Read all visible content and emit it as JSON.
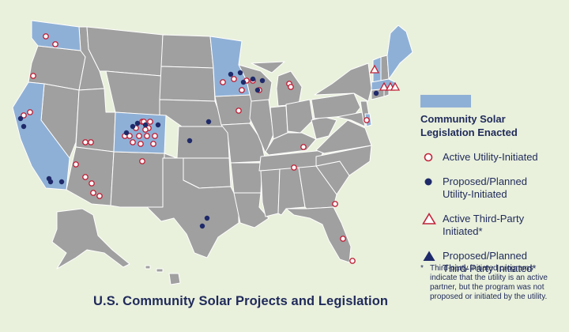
{
  "title": "U.S. Community Solar Projects and Legislation",
  "legend": {
    "legislation_line1": "Community Solar",
    "legislation_line2": "Legislation Enacted",
    "active_utility": "Active Utility-Initiated",
    "proposed_utility_line1": "Proposed/Planned",
    "proposed_utility_line2": "Utility-Initiated",
    "active_third_party": "Active Third-Party Initiated*",
    "proposed_third_party_line1": "Proposed/Planned",
    "proposed_third_party_line2": "Third-Party Initiated*"
  },
  "footnote": {
    "star": "*",
    "text": "Third-party initiated programs indicate that the utility is an active partner, but the program was not proposed or initiated by the utility."
  },
  "colors": {
    "background": "#e9f0dc",
    "states": "#a0a0a0",
    "legislation_states": "#8fb0d6",
    "borders": "#ffffff",
    "active_marker": "#c0243a",
    "proposed_marker": "#1f2a6a",
    "text": "#1f2a5a"
  },
  "legislation_states": [
    "Washington",
    "California",
    "Colorado",
    "Minnesota",
    "Vermont",
    "Massachusetts",
    "Maine",
    "Delaware"
  ],
  "markers": {
    "active_utility": 46,
    "proposed_utility": 21,
    "active_third_party": 4,
    "proposed_third_party": 0
  }
}
